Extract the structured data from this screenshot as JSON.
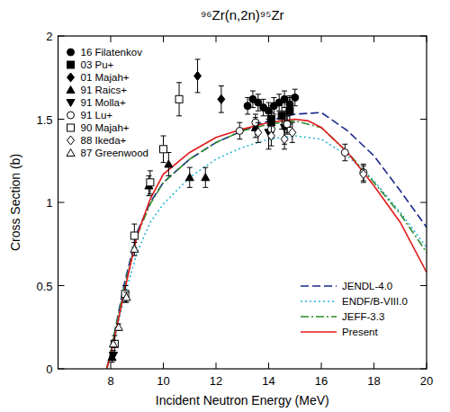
{
  "chart_data": {
    "type": "scatter",
    "title": "⁹⁶Zr(n,2n)⁹⁵Zr",
    "x_label": "Incident Neutron Energy (MeV)",
    "y_label": "Cross Section (b)",
    "xlim": [
      6,
      20
    ],
    "xticks": [
      8,
      10,
      12,
      14,
      16,
      18,
      20
    ],
    "ylim": [
      0,
      2
    ],
    "yticks": [
      0,
      0.5,
      1,
      1.5,
      2
    ],
    "grid": false,
    "legend": "upper left",
    "series": [
      {
        "name": "16 Filatenkov",
        "type": "scatter",
        "color": "#000000",
        "marker": "circle",
        "x": [
          13.2,
          13.4,
          13.6,
          13.8,
          14.0,
          14.2,
          14.4,
          14.6,
          14.8,
          15.0
        ],
        "values": [
          1.58,
          1.62,
          1.6,
          1.57,
          1.55,
          1.58,
          1.6,
          1.62,
          1.59,
          1.63
        ],
        "errors": [
          0.05,
          0.05,
          0.05,
          0.05,
          0.05,
          0.05,
          0.05,
          0.05,
          0.05,
          0.05
        ]
      },
      {
        "name": "03 Pu+",
        "type": "scatter",
        "color": "#000000",
        "marker": "square",
        "x": [
          14.1,
          14.5,
          14.8
        ],
        "values": [
          1.5,
          1.52,
          1.55
        ],
        "errors": [
          0.08,
          0.08,
          0.08
        ]
      },
      {
        "name": "01 Majah+",
        "type": "scatter",
        "color": "#000000",
        "marker": "diamond",
        "x": [
          11.3,
          12.2
        ],
        "values": [
          1.76,
          1.62
        ],
        "errors": [
          0.1,
          0.08
        ]
      },
      {
        "name": "91 Raics+",
        "type": "scatter",
        "color": "#000000",
        "marker": "triangle-up",
        "x": [
          8.05,
          9.45,
          10.2,
          11.0,
          11.6,
          13.5,
          14.1,
          14.7
        ],
        "values": [
          0.07,
          1.1,
          1.23,
          1.15,
          1.15,
          1.45,
          1.48,
          1.47
        ],
        "errors": [
          0.03,
          0.06,
          0.07,
          0.06,
          0.06,
          0.06,
          0.06,
          0.06
        ]
      },
      {
        "name": "91 Molla+",
        "type": "scatter",
        "color": "#000000",
        "marker": "triangle-down",
        "x": [
          8.1,
          14.0,
          14.6
        ],
        "values": [
          0.08,
          1.42,
          1.45
        ],
        "errors": [
          0.03,
          0.1,
          0.1
        ]
      },
      {
        "name": "91 Lu+",
        "type": "scatter",
        "color": "#000000",
        "marker": "open-circle",
        "x": [
          12.9,
          13.5,
          14.1,
          14.7,
          16.9,
          17.6
        ],
        "values": [
          1.43,
          1.48,
          1.44,
          1.47,
          1.3,
          1.18
        ],
        "errors": [
          0.05,
          0.05,
          0.05,
          0.05,
          0.05,
          0.05
        ]
      },
      {
        "name": "90 Majah+",
        "type": "scatter",
        "color": "#000000",
        "marker": "open-square",
        "x": [
          8.15,
          8.55,
          8.9,
          9.5,
          10.0,
          10.6
        ],
        "values": [
          0.15,
          0.45,
          0.8,
          1.12,
          1.32,
          1.62
        ],
        "errors": [
          0.05,
          0.05,
          0.07,
          0.07,
          0.08,
          0.1
        ]
      },
      {
        "name": "88 Ikeda+",
        "type": "scatter",
        "color": "#000000",
        "marker": "open-diamond",
        "x": [
          13.6,
          14.1,
          14.6,
          14.9,
          17.6
        ],
        "values": [
          1.42,
          1.4,
          1.38,
          1.42,
          1.17
        ],
        "errors": [
          0.06,
          0.06,
          0.06,
          0.06,
          0.05
        ]
      },
      {
        "name": "87 Greenwood",
        "type": "scatter",
        "color": "#000000",
        "marker": "open-triangle",
        "x": [
          8.1,
          8.3,
          8.6,
          8.9
        ],
        "values": [
          0.15,
          0.25,
          0.43,
          0.72
        ],
        "errors": [
          0.02,
          0.02,
          0.03,
          0.04
        ]
      },
      {
        "name": "JENDL-4.0",
        "type": "line",
        "color": "#1a2a8c",
        "line_style": "dashed",
        "x": [
          7.85,
          8,
          8.5,
          9,
          9.5,
          10,
          11,
          12,
          13,
          14,
          15,
          16,
          17,
          18,
          19,
          20
        ],
        "values": [
          0,
          0.1,
          0.5,
          0.82,
          1.0,
          1.12,
          1.26,
          1.36,
          1.43,
          1.49,
          1.53,
          1.54,
          1.43,
          1.28,
          1.07,
          0.85
        ]
      },
      {
        "name": "ENDF/B-VIII.0",
        "type": "line",
        "color": "#29b6d6",
        "line_style": "dotted",
        "x": [
          7.85,
          8,
          8.5,
          9,
          9.5,
          10,
          11,
          12,
          13,
          14,
          15,
          16,
          17,
          18,
          19,
          20
        ],
        "values": [
          0,
          0.08,
          0.42,
          0.7,
          0.88,
          0.99,
          1.15,
          1.26,
          1.33,
          1.38,
          1.4,
          1.38,
          1.28,
          1.13,
          0.94,
          0.73
        ]
      },
      {
        "name": "JEFF-3.3",
        "type": "line",
        "color": "#2e8b2e",
        "line_style": "dashdot",
        "x": [
          7.85,
          8,
          8.5,
          9,
          9.5,
          10,
          11,
          12,
          13,
          14,
          15,
          16,
          17,
          18,
          19,
          20
        ],
        "values": [
          0,
          0.1,
          0.48,
          0.8,
          0.99,
          1.12,
          1.26,
          1.36,
          1.43,
          1.47,
          1.49,
          1.45,
          1.3,
          1.12,
          0.93,
          0.7
        ]
      },
      {
        "name": "Present",
        "type": "line",
        "color": "#e31a1c",
        "line_style": "solid",
        "x": [
          7.85,
          8,
          8.5,
          9,
          9.5,
          10,
          11,
          12,
          13,
          14,
          15,
          15.5,
          16,
          17,
          18,
          19,
          20
        ],
        "values": [
          0,
          0.08,
          0.45,
          0.8,
          1.02,
          1.17,
          1.3,
          1.39,
          1.44,
          1.48,
          1.5,
          1.49,
          1.45,
          1.3,
          1.1,
          0.88,
          0.58
        ]
      }
    ]
  }
}
